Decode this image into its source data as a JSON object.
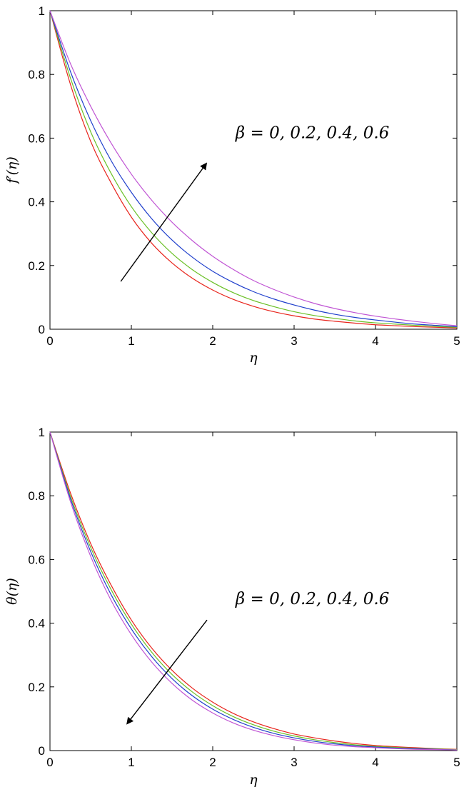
{
  "chart_data": [
    {
      "type": "line",
      "xlabel": "η",
      "ylabel": "f′(η)",
      "xlim": [
        0,
        5
      ],
      "ylim": [
        0,
        1
      ],
      "xticks": [
        "0",
        "1",
        "2",
        "3",
        "4",
        "5"
      ],
      "yticks": [
        "0",
        "0.2",
        "0.4",
        "0.6",
        "0.8",
        "1"
      ],
      "grid": false,
      "legend": "none",
      "x": [
        0,
        0.25,
        0.5,
        0.75,
        1,
        1.25,
        1.5,
        1.75,
        2,
        2.25,
        2.5,
        2.75,
        3,
        3.25,
        3.5,
        3.75,
        4,
        4.25,
        4.5,
        4.75,
        5
      ],
      "series": [
        {
          "color": "#e8241c",
          "values": [
            1,
            0.77,
            0.59,
            0.46,
            0.352,
            0.27,
            0.208,
            0.16,
            0.123,
            0.094,
            0.072,
            0.055,
            0.042,
            0.032,
            0.025,
            0.019,
            0.014,
            0.011,
            0.008,
            0.006,
            0.004
          ]
        },
        {
          "color": "#6ac026",
          "values": [
            1,
            0.79,
            0.62,
            0.49,
            0.385,
            0.303,
            0.238,
            0.187,
            0.147,
            0.115,
            0.09,
            0.071,
            0.055,
            0.043,
            0.034,
            0.026,
            0.02,
            0.016,
            0.012,
            0.009,
            0.006
          ]
        },
        {
          "color": "#1f3fcc",
          "values": [
            1,
            0.81,
            0.655,
            0.53,
            0.43,
            0.347,
            0.28,
            0.226,
            0.182,
            0.147,
            0.118,
            0.095,
            0.076,
            0.06,
            0.047,
            0.037,
            0.029,
            0.022,
            0.016,
            0.012,
            0.008
          ]
        },
        {
          "color": "#c055d4",
          "values": [
            1,
            0.835,
            0.7,
            0.585,
            0.487,
            0.405,
            0.336,
            0.278,
            0.229,
            0.188,
            0.153,
            0.125,
            0.101,
            0.081,
            0.065,
            0.052,
            0.041,
            0.032,
            0.024,
            0.017,
            0.011
          ]
        }
      ],
      "annotation": {
        "text": "β = 0, 0.2, 0.4, 0.6",
        "arrow_from": [
          0.87,
          0.15
        ],
        "arrow_to": [
          1.92,
          0.52
        ],
        "text_at": [
          2.28,
          0.6
        ]
      }
    },
    {
      "type": "line",
      "xlabel": "η",
      "ylabel": "θ(η)",
      "xlim": [
        0,
        5
      ],
      "ylim": [
        0,
        1
      ],
      "xticks": [
        "0",
        "1",
        "2",
        "3",
        "4",
        "5"
      ],
      "yticks": [
        "0",
        "0.2",
        "0.4",
        "0.6",
        "0.8",
        "1"
      ],
      "grid": false,
      "legend": "none",
      "x": [
        0,
        0.25,
        0.5,
        0.75,
        1,
        1.25,
        1.5,
        1.75,
        2,
        2.25,
        2.5,
        2.75,
        3,
        3.25,
        3.5,
        3.75,
        4,
        4.25,
        4.5,
        4.75,
        5
      ],
      "series": [
        {
          "color": "#e8241c",
          "values": [
            1,
            0.81,
            0.65,
            0.52,
            0.41,
            0.322,
            0.252,
            0.196,
            0.152,
            0.117,
            0.09,
            0.069,
            0.052,
            0.04,
            0.03,
            0.022,
            0.016,
            0.012,
            0.009,
            0.006,
            0.004
          ]
        },
        {
          "color": "#6ac026",
          "values": [
            1,
            0.8,
            0.638,
            0.506,
            0.397,
            0.309,
            0.239,
            0.184,
            0.141,
            0.107,
            0.081,
            0.061,
            0.046,
            0.034,
            0.025,
            0.018,
            0.013,
            0.01,
            0.007,
            0.005,
            0.003
          ]
        },
        {
          "color": "#1f3fcc",
          "values": [
            1,
            0.792,
            0.625,
            0.49,
            0.382,
            0.295,
            0.226,
            0.172,
            0.13,
            0.098,
            0.073,
            0.054,
            0.04,
            0.029,
            0.021,
            0.015,
            0.011,
            0.008,
            0.006,
            0.004,
            0.002
          ]
        },
        {
          "color": "#c055d4",
          "values": [
            1,
            0.783,
            0.61,
            0.472,
            0.364,
            0.278,
            0.211,
            0.158,
            0.118,
            0.087,
            0.064,
            0.047,
            0.034,
            0.024,
            0.017,
            0.012,
            0.009,
            0.006,
            0.004,
            0.003,
            0.002
          ]
        }
      ],
      "annotation": {
        "text": "β = 0, 0.2, 0.4, 0.6",
        "arrow_from": [
          1.93,
          0.41
        ],
        "arrow_to": [
          0.95,
          0.085
        ],
        "text_at": [
          2.28,
          0.46
        ]
      }
    }
  ]
}
